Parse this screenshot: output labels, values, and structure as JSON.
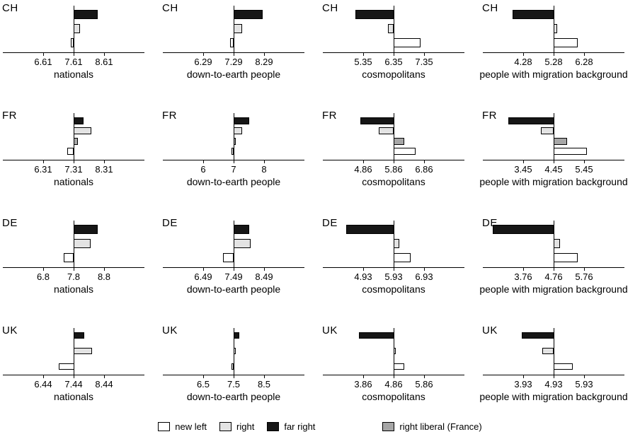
{
  "chart_data": {
    "type": "bar",
    "orientation": "horizontal",
    "title": "",
    "value_definition": "bar values are approximate deviations from each panel's center reference line (the middle axis tick), estimated from the figure",
    "rows": [
      "CH",
      "FR",
      "DE",
      "UK"
    ],
    "columns": [
      "nationals",
      "down-to-earth people",
      "cosmopolitans",
      "people with migration background"
    ],
    "legend": [
      {
        "label": "new left",
        "color": "#ffffff"
      },
      {
        "label": "right",
        "color": "#e3e3e3"
      },
      {
        "label": "far right",
        "color": "#161616"
      },
      {
        "label": "right liberal (France)",
        "color": "#a6a6a6"
      }
    ],
    "panels": [
      {
        "country": "CH",
        "category": "nationals",
        "ticks": [
          "6.61",
          "7.61",
          "8.61"
        ],
        "center": 7.61,
        "bars": [
          {
            "party": "far right",
            "value": 0.78
          },
          {
            "party": "right",
            "value": 0.22
          },
          {
            "party": "new left",
            "value": -0.1
          }
        ]
      },
      {
        "country": "CH",
        "category": "down-to-earth people",
        "ticks": [
          "6.29",
          "7.29",
          "8.29"
        ],
        "center": 7.29,
        "bars": [
          {
            "party": "far right",
            "value": 0.95
          },
          {
            "party": "right",
            "value": 0.28
          },
          {
            "party": "new left",
            "value": -0.12
          }
        ]
      },
      {
        "country": "CH",
        "category": "cosmopolitans",
        "ticks": [
          "5.35",
          "6.35",
          "7.35"
        ],
        "center": 6.35,
        "bars": [
          {
            "party": "far right",
            "value": -1.25
          },
          {
            "party": "right",
            "value": -0.18
          },
          {
            "party": "new left",
            "value": 0.88
          }
        ]
      },
      {
        "country": "CH",
        "category": "people with migration background",
        "ticks": [
          "4.28",
          "5.28",
          "6.28"
        ],
        "center": 5.28,
        "bars": [
          {
            "party": "far right",
            "value": -1.35
          },
          {
            "party": "right",
            "value": 0.12
          },
          {
            "party": "new left",
            "value": 0.78
          }
        ]
      },
      {
        "country": "FR",
        "category": "nationals",
        "ticks": [
          "6.31",
          "7.31",
          "8.31"
        ],
        "center": 7.31,
        "bars": [
          {
            "party": "far right",
            "value": 0.32
          },
          {
            "party": "right",
            "value": 0.58
          },
          {
            "party": "right liberal (France)",
            "value": 0.15
          },
          {
            "party": "new left",
            "value": -0.22
          }
        ]
      },
      {
        "country": "FR",
        "category": "down-to-earth people",
        "ticks": [
          "6",
          "7",
          "8"
        ],
        "center": 7,
        "bars": [
          {
            "party": "far right",
            "value": 0.5
          },
          {
            "party": "right",
            "value": 0.28
          },
          {
            "party": "right liberal (France)",
            "value": 0.08
          },
          {
            "party": "new left",
            "value": -0.08
          }
        ]
      },
      {
        "country": "FR",
        "category": "cosmopolitans",
        "ticks": [
          "4.86",
          "5.86",
          "6.86"
        ],
        "center": 5.86,
        "bars": [
          {
            "party": "far right",
            "value": -1.1
          },
          {
            "party": "right",
            "value": -0.48
          },
          {
            "party": "right liberal (France)",
            "value": 0.35
          },
          {
            "party": "new left",
            "value": 0.72
          }
        ]
      },
      {
        "country": "FR",
        "category": "people with migration background",
        "ticks": [
          "3.45",
          "4.45",
          "5.45"
        ],
        "center": 4.45,
        "bars": [
          {
            "party": "far right",
            "value": -1.5
          },
          {
            "party": "right",
            "value": -0.42
          },
          {
            "party": "right liberal (France)",
            "value": 0.45
          },
          {
            "party": "new left",
            "value": 1.1
          }
        ]
      },
      {
        "country": "DE",
        "category": "nationals",
        "ticks": [
          "6.8",
          "7.8",
          "8.8"
        ],
        "center": 7.8,
        "bars": [
          {
            "party": "far right",
            "value": 0.78
          },
          {
            "party": "right",
            "value": 0.55
          },
          {
            "party": "new left",
            "value": -0.32
          }
        ]
      },
      {
        "country": "DE",
        "category": "down-to-earth people",
        "ticks": [
          "6.49",
          "7.49",
          "8.49"
        ],
        "center": 7.49,
        "bars": [
          {
            "party": "far right",
            "value": 0.52
          },
          {
            "party": "right",
            "value": 0.55
          },
          {
            "party": "new left",
            "value": -0.35
          }
        ]
      },
      {
        "country": "DE",
        "category": "cosmopolitans",
        "ticks": [
          "4.93",
          "5.93",
          "6.93"
        ],
        "center": 5.93,
        "bars": [
          {
            "party": "far right",
            "value": -1.55
          },
          {
            "party": "right",
            "value": 0.18
          },
          {
            "party": "new left",
            "value": 0.55
          }
        ]
      },
      {
        "country": "DE",
        "category": "people with migration background",
        "ticks": [
          "3.76",
          "4.76",
          "5.76"
        ],
        "center": 4.76,
        "bars": [
          {
            "party": "far right",
            "value": -2.0
          },
          {
            "party": "right",
            "value": 0.2
          },
          {
            "party": "new left",
            "value": 0.8
          }
        ]
      },
      {
        "country": "UK",
        "category": "nationals",
        "ticks": [
          "6.44",
          "7.44",
          "8.44"
        ],
        "center": 7.44,
        "bars": [
          {
            "party": "far right",
            "value": 0.35
          },
          {
            "party": "right",
            "value": 0.6
          },
          {
            "party": "new left",
            "value": -0.5
          }
        ]
      },
      {
        "country": "UK",
        "category": "down-to-earth people",
        "ticks": [
          "6.5",
          "7.5",
          "8.5"
        ],
        "center": 7.5,
        "bars": [
          {
            "party": "far right",
            "value": 0.18
          },
          {
            "party": "right",
            "value": 0.06
          },
          {
            "party": "new left",
            "value": -0.08
          }
        ]
      },
      {
        "country": "UK",
        "category": "cosmopolitans",
        "ticks": [
          "3.86",
          "4.86",
          "5.86"
        ],
        "center": 4.86,
        "bars": [
          {
            "party": "far right",
            "value": -1.15
          },
          {
            "party": "right",
            "value": 0.08
          },
          {
            "party": "new left",
            "value": 0.35
          }
        ]
      },
      {
        "country": "UK",
        "category": "people with migration background",
        "ticks": [
          "3.93",
          "4.93",
          "5.93"
        ],
        "center": 4.93,
        "bars": [
          {
            "party": "far right",
            "value": -1.05
          },
          {
            "party": "right",
            "value": -0.38
          },
          {
            "party": "new left",
            "value": 0.62
          }
        ]
      }
    ]
  }
}
